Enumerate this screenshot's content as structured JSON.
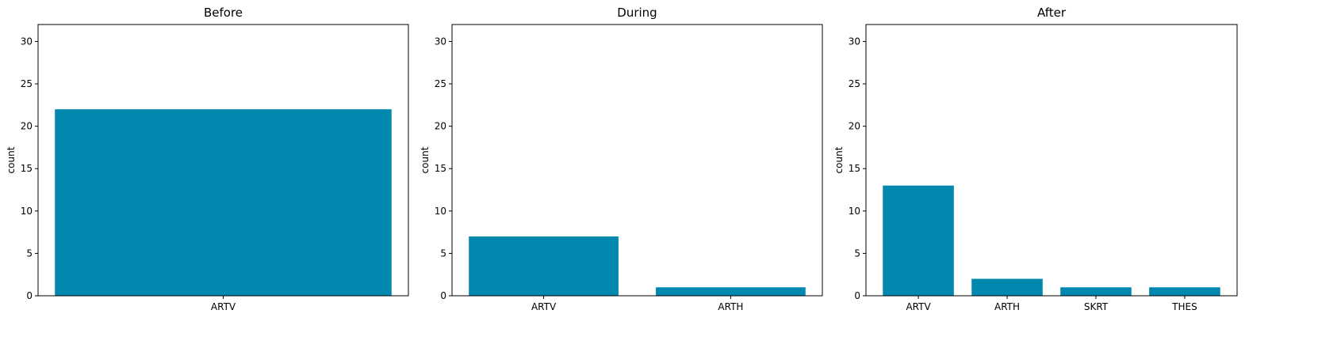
{
  "colors": {
    "bar": "#0088AE"
  },
  "chart_data": [
    {
      "type": "bar",
      "title": "Before",
      "categories": [
        "ARTV"
      ],
      "values": [
        22
      ],
      "xlabel": "",
      "ylabel": "count",
      "ylim": [
        0,
        32
      ],
      "yticks": [
        0,
        5,
        10,
        15,
        20,
        25,
        30
      ],
      "grid": false
    },
    {
      "type": "bar",
      "title": "During",
      "categories": [
        "ARTV",
        "ARTH"
      ],
      "values": [
        7,
        1
      ],
      "xlabel": "",
      "ylabel": "count",
      "ylim": [
        0,
        32
      ],
      "yticks": [
        0,
        5,
        10,
        15,
        20,
        25,
        30
      ],
      "grid": false
    },
    {
      "type": "bar",
      "title": "After",
      "categories": [
        "ARTV",
        "ARTH",
        "SKRT",
        "THES"
      ],
      "values": [
        13,
        2,
        1,
        1
      ],
      "xlabel": "",
      "ylabel": "count",
      "ylim": [
        0,
        32
      ],
      "yticks": [
        0,
        5,
        10,
        15,
        20,
        25,
        30
      ],
      "grid": false
    }
  ]
}
